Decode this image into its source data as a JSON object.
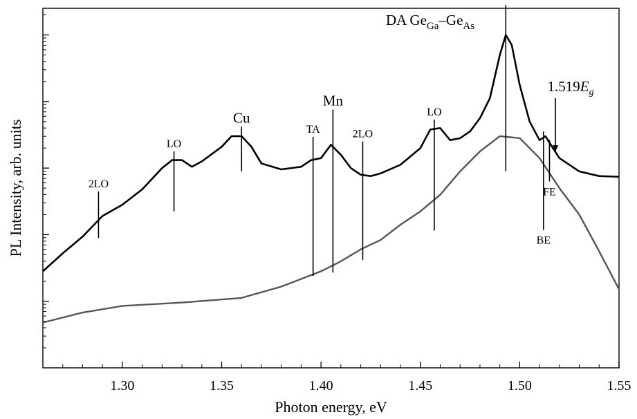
{
  "chart_data": {
    "type": "line",
    "xlabel": "Photon energy, eV",
    "ylabel": "PL Intensity, arb. units",
    "xlim": [
      1.26,
      1.55
    ],
    "ylim": [
      0,
      5.4
    ],
    "y_scale": "log",
    "x_ticks": [
      1.3,
      1.35,
      1.4,
      1.45,
      1.5,
      1.55
    ],
    "x_tick_labels": [
      "1.30",
      "1.35",
      "1.40",
      "1.45",
      "1.50",
      "1.55"
    ],
    "grid": false,
    "series": [
      {
        "color": "#000000",
        "points": [
          [
            1.26,
            1.45
          ],
          [
            1.27,
            1.72
          ],
          [
            1.28,
            1.97
          ],
          [
            1.29,
            2.28
          ],
          [
            1.3,
            2.45
          ],
          [
            1.31,
            2.68
          ],
          [
            1.32,
            3.0
          ],
          [
            1.325,
            3.12
          ],
          [
            1.33,
            3.12
          ],
          [
            1.335,
            3.02
          ],
          [
            1.34,
            3.1
          ],
          [
            1.35,
            3.32
          ],
          [
            1.355,
            3.48
          ],
          [
            1.36,
            3.48
          ],
          [
            1.365,
            3.32
          ],
          [
            1.37,
            3.07
          ],
          [
            1.38,
            2.98
          ],
          [
            1.39,
            3.02
          ],
          [
            1.395,
            3.12
          ],
          [
            1.4,
            3.15
          ],
          [
            1.405,
            3.35
          ],
          [
            1.41,
            3.2
          ],
          [
            1.415,
            3.0
          ],
          [
            1.42,
            2.9
          ],
          [
            1.425,
            2.88
          ],
          [
            1.43,
            2.92
          ],
          [
            1.44,
            3.05
          ],
          [
            1.45,
            3.3
          ],
          [
            1.455,
            3.58
          ],
          [
            1.46,
            3.6
          ],
          [
            1.465,
            3.42
          ],
          [
            1.47,
            3.45
          ],
          [
            1.475,
            3.55
          ],
          [
            1.48,
            3.75
          ],
          [
            1.485,
            4.05
          ],
          [
            1.49,
            4.7
          ],
          [
            1.493,
            5.0
          ],
          [
            1.496,
            4.85
          ],
          [
            1.5,
            4.25
          ],
          [
            1.505,
            3.7
          ],
          [
            1.51,
            3.42
          ],
          [
            1.513,
            3.48
          ],
          [
            1.515,
            3.38
          ],
          [
            1.52,
            3.15
          ],
          [
            1.53,
            2.95
          ],
          [
            1.54,
            2.88
          ],
          [
            1.55,
            2.87
          ]
        ]
      },
      {
        "color": "#555555",
        "points": [
          [
            1.26,
            0.68
          ],
          [
            1.28,
            0.83
          ],
          [
            1.3,
            0.93
          ],
          [
            1.33,
            0.98
          ],
          [
            1.36,
            1.05
          ],
          [
            1.38,
            1.22
          ],
          [
            1.4,
            1.45
          ],
          [
            1.41,
            1.6
          ],
          [
            1.42,
            1.78
          ],
          [
            1.43,
            1.92
          ],
          [
            1.44,
            2.15
          ],
          [
            1.45,
            2.35
          ],
          [
            1.46,
            2.6
          ],
          [
            1.47,
            2.95
          ],
          [
            1.48,
            3.25
          ],
          [
            1.49,
            3.48
          ],
          [
            1.5,
            3.45
          ],
          [
            1.51,
            3.15
          ],
          [
            1.52,
            2.7
          ],
          [
            1.53,
            2.3
          ],
          [
            1.54,
            1.75
          ],
          [
            1.55,
            1.18
          ]
        ]
      }
    ],
    "annotations": [
      {
        "text": "2LO",
        "x": 1.288,
        "y_top": 2.65,
        "y_bottom": 1.95,
        "size": "small"
      },
      {
        "text": "LO",
        "x": 1.326,
        "y_top": 3.25,
        "y_bottom": 2.35,
        "size": "small"
      },
      {
        "text": "Cu",
        "x": 1.36,
        "y_top": 3.62,
        "y_bottom": 2.95,
        "size": "large"
      },
      {
        "text": "TA",
        "x": 1.396,
        "y_top": 3.47,
        "y_bottom": 1.38,
        "size": "small"
      },
      {
        "text": "Mn",
        "x": 1.406,
        "y_top": 3.88,
        "y_bottom": 1.43,
        "size": "large"
      },
      {
        "text": "2LO",
        "x": 1.421,
        "y_top": 3.4,
        "y_bottom": 1.62,
        "size": "small"
      },
      {
        "text": "LO",
        "x": 1.457,
        "y_top": 3.73,
        "y_bottom": 2.06,
        "size": "small"
      },
      {
        "text": "1.519",
        "x": 1.518,
        "y_top": 4.05,
        "y_bottom": 3.25,
        "size": "large",
        "subscript_text": "Eg"
      },
      {
        "text": "BE",
        "x": 1.512,
        "y_top": 3.55,
        "y_bottom": 2.07,
        "size": "small"
      },
      {
        "text": "FE",
        "x": 1.515,
        "y_top": 3.42,
        "y_bottom": 2.8,
        "size": "small"
      }
    ],
    "peak_label": {
      "text": "DA Ge",
      "sub1": "Ga",
      "mid": "–Ge",
      "sub2": "As",
      "x": 1.493,
      "y_top": 5.45,
      "y_bottom": 2.95
    }
  }
}
